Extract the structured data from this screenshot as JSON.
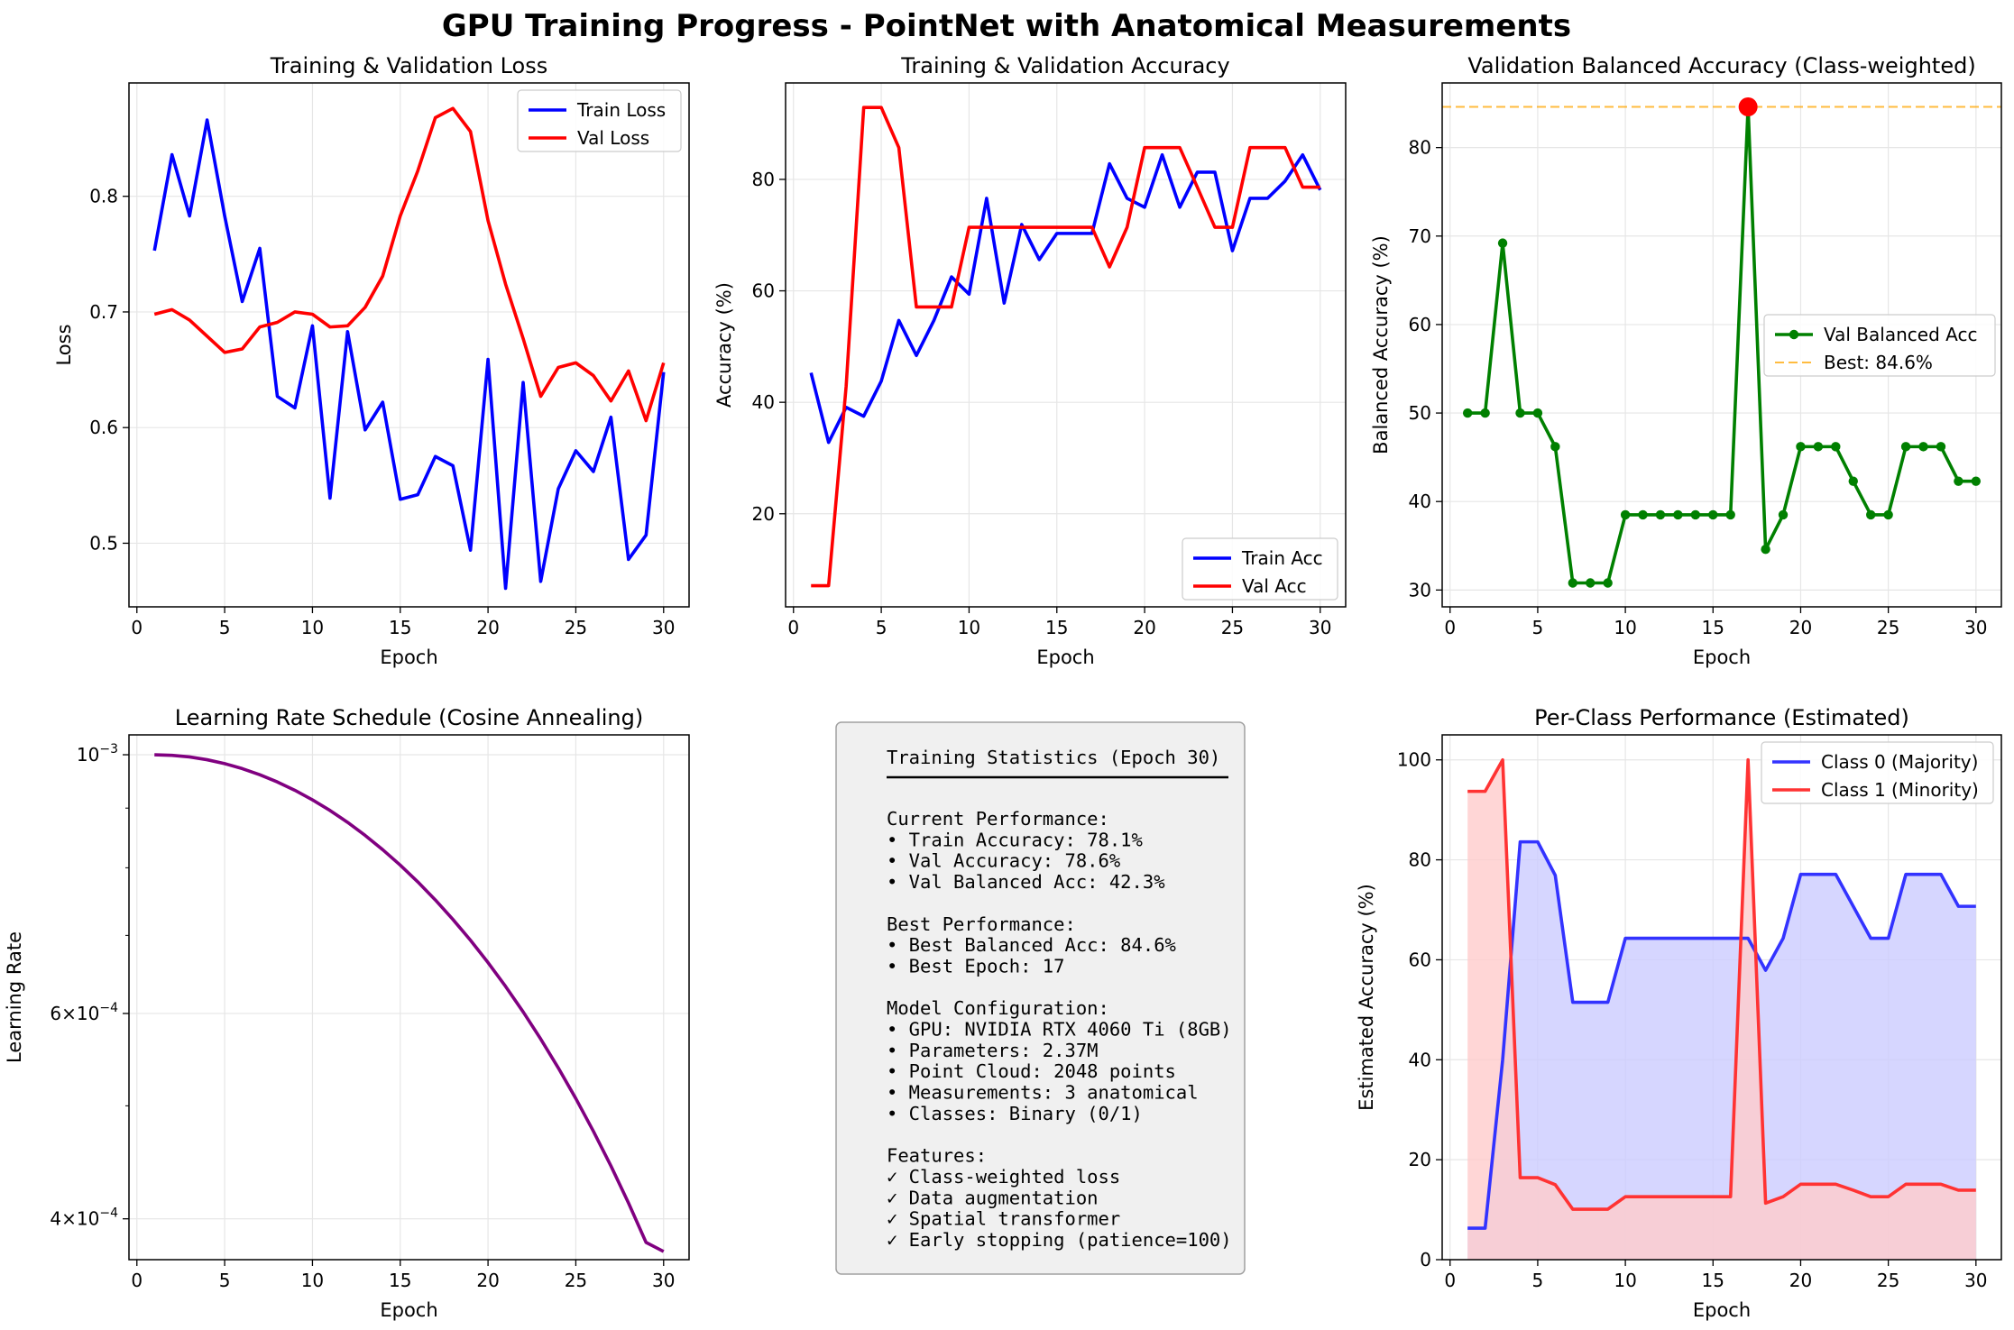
{
  "figure": {
    "suptitle": "GPU Training Progress - PointNet with Anatomical Measurements"
  },
  "chart_data": [
    {
      "id": "loss",
      "type": "line",
      "title": "Training & Validation Loss",
      "xlabel": "Epoch",
      "ylabel": "Loss",
      "xlim": [
        -0.45,
        31.45
      ],
      "ylim": [
        0.445,
        0.898
      ],
      "xticks": [
        0,
        5,
        10,
        15,
        20,
        25,
        30
      ],
      "yticks": [
        0.5,
        0.6,
        0.7,
        0.8
      ],
      "ytick_labels": [
        "0.5",
        "0.6",
        "0.7",
        "0.8"
      ],
      "grid": true,
      "legend": "upper right",
      "x": [
        1,
        2,
        3,
        4,
        5,
        6,
        7,
        8,
        9,
        10,
        11,
        12,
        13,
        14,
        15,
        16,
        17,
        18,
        19,
        20,
        21,
        22,
        23,
        24,
        25,
        26,
        27,
        28,
        29,
        30
      ],
      "series": [
        {
          "name": "Train Loss",
          "color": "#0000ff",
          "values": [
            0.753,
            0.836,
            0.783,
            0.866,
            0.783,
            0.709,
            0.755,
            0.627,
            0.617,
            0.688,
            0.539,
            0.683,
            0.598,
            0.622,
            0.538,
            0.542,
            0.575,
            0.567,
            0.494,
            0.659,
            0.461,
            0.639,
            0.467,
            0.547,
            0.58,
            0.562,
            0.609,
            0.486,
            0.507,
            0.648
          ]
        },
        {
          "name": "Val Loss",
          "color": "#ff0000",
          "values": [
            0.698,
            0.702,
            0.693,
            0.679,
            0.665,
            0.668,
            0.687,
            0.691,
            0.7,
            0.698,
            0.687,
            0.688,
            0.704,
            0.731,
            0.783,
            0.822,
            0.868,
            0.876,
            0.856,
            0.779,
            0.724,
            0.677,
            0.627,
            0.652,
            0.656,
            0.645,
            0.623,
            0.649,
            0.606,
            0.656
          ]
        }
      ]
    },
    {
      "id": "acc",
      "type": "line",
      "title": "Training & Validation Accuracy",
      "xlabel": "Epoch",
      "ylabel": "Accuracy (%)",
      "xlim": [
        -0.45,
        31.45
      ],
      "ylim": [
        3.3,
        97.3
      ],
      "xticks": [
        0,
        5,
        10,
        15,
        20,
        25,
        30
      ],
      "yticks": [
        20,
        40,
        60,
        80
      ],
      "ytick_labels": [
        "20",
        "40",
        "60",
        "80"
      ],
      "grid": true,
      "legend": "lower right",
      "x": [
        1,
        2,
        3,
        4,
        5,
        6,
        7,
        8,
        9,
        10,
        11,
        12,
        13,
        14,
        15,
        16,
        17,
        18,
        19,
        20,
        21,
        22,
        23,
        24,
        25,
        26,
        27,
        28,
        29,
        30
      ],
      "series": [
        {
          "name": "Train Acc",
          "color": "#0000ff",
          "values": [
            45.3,
            32.8,
            39.1,
            37.5,
            43.8,
            54.7,
            48.4,
            54.7,
            62.5,
            59.4,
            76.6,
            57.8,
            71.9,
            65.6,
            70.3,
            70.3,
            70.3,
            82.8,
            76.6,
            75.0,
            84.4,
            75.0,
            81.3,
            81.3,
            67.2,
            76.6,
            76.6,
            79.7,
            84.4,
            78.1
          ]
        },
        {
          "name": "Val Acc",
          "color": "#ff0000",
          "values": [
            7.1,
            7.1,
            42.9,
            92.9,
            92.9,
            85.7,
            57.1,
            57.1,
            57.1,
            71.4,
            71.4,
            71.4,
            71.4,
            71.4,
            71.4,
            71.4,
            71.4,
            64.3,
            71.4,
            85.7,
            85.7,
            85.7,
            78.6,
            71.4,
            71.4,
            85.7,
            85.7,
            85.7,
            78.6,
            78.6
          ]
        }
      ]
    },
    {
      "id": "bal",
      "type": "line",
      "title": "Validation Balanced Accuracy (Class-weighted)",
      "xlabel": "Epoch",
      "ylabel": "Balanced Accuracy (%)",
      "xlim": [
        -0.45,
        31.45
      ],
      "ylim": [
        28.1,
        87.3
      ],
      "xticks": [
        0,
        5,
        10,
        15,
        20,
        25,
        30
      ],
      "yticks": [
        30,
        40,
        50,
        60,
        70,
        80
      ],
      "ytick_labels": [
        "30",
        "40",
        "50",
        "60",
        "70",
        "80"
      ],
      "grid": true,
      "legend": "center right",
      "x": [
        1,
        2,
        3,
        4,
        5,
        6,
        7,
        8,
        9,
        10,
        11,
        12,
        13,
        14,
        15,
        16,
        17,
        18,
        19,
        20,
        21,
        22,
        23,
        24,
        25,
        26,
        27,
        28,
        29,
        30
      ],
      "series": [
        {
          "name": "Val Balanced Acc",
          "color": "#008000",
          "values": [
            50.0,
            50.0,
            69.2,
            50.0,
            50.0,
            46.2,
            30.8,
            30.8,
            30.8,
            38.5,
            38.5,
            38.5,
            38.5,
            38.5,
            38.5,
            38.5,
            84.6,
            34.6,
            38.5,
            46.2,
            46.2,
            46.2,
            42.3,
            38.5,
            38.5,
            46.2,
            46.2,
            46.2,
            42.3,
            42.3
          ]
        }
      ],
      "reference_line": {
        "name": "Best: 84.6%",
        "value": 84.6,
        "color": "#ffa500"
      },
      "best_point": {
        "x": 17,
        "y": 84.6,
        "color": "#ff0000"
      }
    },
    {
      "id": "lr",
      "type": "line",
      "title": "Learning Rate Schedule (Cosine Annealing)",
      "xlabel": "Epoch",
      "ylabel": "Learning Rate",
      "xlim": [
        -0.45,
        31.45
      ],
      "ylim": [
        0.000369,
        0.00104
      ],
      "yscale": "log",
      "xticks": [
        0,
        5,
        10,
        15,
        20,
        25,
        30
      ],
      "ytick_major": [
        {
          "value": 0.001,
          "base": "10",
          "exp": "−3"
        },
        {
          "value": 0.0006,
          "base": "6×10",
          "exp": "−4"
        },
        {
          "value": 0.0004,
          "base": "4×10",
          "exp": "−4"
        }
      ],
      "ytick_minor": [
        0.0005,
        0.0007,
        0.0008,
        0.0009
      ],
      "grid": true,
      "x": [
        1,
        2,
        3,
        4,
        5,
        6,
        7,
        8,
        9,
        10,
        11,
        12,
        13,
        14,
        15,
        16,
        17,
        18,
        19,
        20,
        21,
        22,
        23,
        24,
        25,
        26,
        27,
        28,
        29,
        30
      ],
      "series": [
        {
          "name": "Learning Rate",
          "color": "#800080",
          "values": [
            0.001,
            0.0009989,
            0.0009957,
            0.0009902,
            0.0009826,
            0.000973,
            0.0009613,
            0.0009477,
            0.0009322,
            0.0009148,
            0.0008958,
            0.0008751,
            0.0008528,
            0.0008291,
            0.0008042,
            0.000778,
            0.0007507,
            0.0007224,
            0.0006933,
            0.0006634,
            0.0006329,
            0.0006019,
            0.0005705,
            0.0005389,
            0.0005072,
            0.0004755,
            0.000444,
            0.0004127,
            0.0003818,
            0.000375
          ]
        }
      ]
    },
    {
      "id": "perclass",
      "type": "area",
      "title": "Per-Class Performance (Estimated)",
      "xlabel": "Epoch",
      "ylabel": "Estimated Accuracy (%)",
      "xlim": [
        -0.45,
        31.45
      ],
      "ylim": [
        0,
        105
      ],
      "xticks": [
        0,
        5,
        10,
        15,
        20,
        25,
        30
      ],
      "yticks": [
        0,
        20,
        40,
        60,
        80,
        100
      ],
      "ytick_labels": [
        "0",
        "20",
        "40",
        "60",
        "80",
        "100"
      ],
      "grid": true,
      "legend": "upper right",
      "x": [
        1,
        2,
        3,
        4,
        5,
        6,
        7,
        8,
        9,
        10,
        11,
        12,
        13,
        14,
        15,
        16,
        17,
        18,
        19,
        20,
        21,
        22,
        23,
        24,
        25,
        26,
        27,
        28,
        29,
        30
      ],
      "series": [
        {
          "name": "Class 0 (Majority)",
          "color": "#3333ff",
          "fill": "#ccccff",
          "values": [
            6.3,
            6.3,
            40.0,
            83.6,
            83.6,
            76.9,
            51.5,
            51.5,
            51.5,
            64.3,
            64.3,
            64.3,
            64.3,
            64.3,
            64.3,
            64.3,
            64.3,
            57.9,
            64.3,
            77.1,
            77.1,
            77.1,
            70.7,
            64.3,
            64.3,
            77.1,
            77.1,
            77.1,
            70.7,
            70.7
          ]
        },
        {
          "name": "Class 1 (Minority)",
          "color": "#ff3333",
          "fill": "#ffcccc",
          "values": [
            93.7,
            93.7,
            100.0,
            16.4,
            16.4,
            15.0,
            10.1,
            10.1,
            10.1,
            12.6,
            12.6,
            12.6,
            12.6,
            12.6,
            12.6,
            12.6,
            100.0,
            11.3,
            12.6,
            15.1,
            15.1,
            15.1,
            13.9,
            12.6,
            12.6,
            15.1,
            15.1,
            15.1,
            13.9,
            13.9
          ]
        }
      ]
    }
  ],
  "stats_panel": {
    "title": "Training Statistics (Epoch 30)",
    "lines": [
      "Current Performance:",
      "• Train Accuracy: 78.1%",
      "• Val Accuracy: 78.6%",
      "• Val Balanced Acc: 42.3%",
      "",
      "Best Performance:",
      "• Best Balanced Acc: 84.6%",
      "• Best Epoch: 17",
      "",
      "Model Configuration:",
      "• GPU: NVIDIA RTX 4060 Ti (8GB)",
      "• Parameters: 2.37M",
      "• Point Cloud: 2048 points",
      "• Measurements: 3 anatomical",
      "• Classes: Binary (0/1)",
      "",
      "Features:",
      "✓ Class-weighted loss",
      "✓ Data augmentation",
      "✓ Spatial transformer",
      "✓ Early stopping (patience=100)"
    ]
  }
}
